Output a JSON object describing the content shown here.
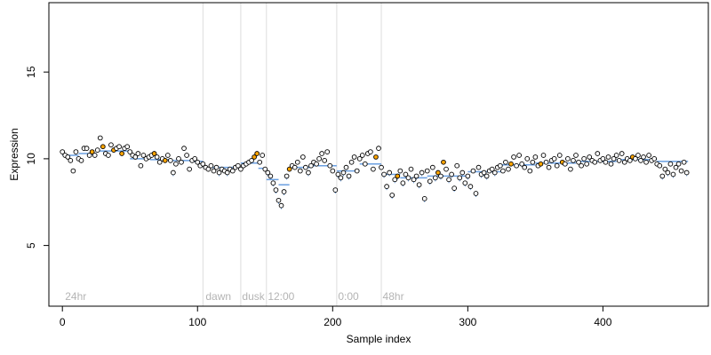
{
  "chart_data": {
    "type": "scatter",
    "title": "",
    "xlabel": "Sample index",
    "ylabel": "Expression",
    "xlim": [
      -10,
      478
    ],
    "ylim": [
      1.5,
      19
    ],
    "x_ticks": [
      0,
      100,
      200,
      300,
      400
    ],
    "y_ticks": [
      5,
      10,
      15
    ],
    "grid": false,
    "legend": "none",
    "colors": {
      "fill_default": "#ffffff",
      "fill_highlight": "#ffa500",
      "stroke": "#000000",
      "segment": "#6a9fe0",
      "vline": "#dddddd",
      "annotation": "#b4b4b4"
    },
    "annotations": [
      {
        "label": "24hr",
        "x": 2
      },
      {
        "label": "dawn",
        "x": 106
      },
      {
        "label": "dusk",
        "x": 133
      },
      {
        "label": "12:00",
        "x": 152
      },
      {
        "label": "0:00",
        "x": 204
      },
      {
        "label": "48hr",
        "x": 237
      }
    ],
    "vlines": [
      104,
      132,
      151,
      203,
      236
    ],
    "segments": [
      {
        "x": [
          0,
          12
        ],
        "y": 10.2
      },
      {
        "x": [
          12,
          25
        ],
        "y": 10.3
      },
      {
        "x": [
          25,
          50
        ],
        "y": 10.45
      },
      {
        "x": [
          50,
          65
        ],
        "y": 10.0
      },
      {
        "x": [
          65,
          80
        ],
        "y": 9.95
      },
      {
        "x": [
          80,
          95
        ],
        "y": 9.9
      },
      {
        "x": [
          95,
          104
        ],
        "y": 9.85
      },
      {
        "x": [
          104,
          132
        ],
        "y": 9.5
      },
      {
        "x": [
          132,
          145
        ],
        "y": 9.75
      },
      {
        "x": [
          145,
          150
        ],
        "y": 9.45
      },
      {
        "x": [
          151,
          160
        ],
        "y": 8.8
      },
      {
        "x": [
          160,
          168
        ],
        "y": 8.5
      },
      {
        "x": [
          168,
          185
        ],
        "y": 9.5
      },
      {
        "x": [
          185,
          203
        ],
        "y": 9.6
      },
      {
        "x": [
          203,
          220
        ],
        "y": 9.3
      },
      {
        "x": [
          220,
          236
        ],
        "y": 9.7
      },
      {
        "x": [
          236,
          250
        ],
        "y": 9.1
      },
      {
        "x": [
          250,
          270
        ],
        "y": 8.9
      },
      {
        "x": [
          270,
          300
        ],
        "y": 9.0
      },
      {
        "x": [
          300,
          325
        ],
        "y": 9.25
      },
      {
        "x": [
          325,
          350
        ],
        "y": 9.65
      },
      {
        "x": [
          350,
          380
        ],
        "y": 9.75
      },
      {
        "x": [
          380,
          410
        ],
        "y": 9.85
      },
      {
        "x": [
          410,
          440
        ],
        "y": 9.95
      },
      {
        "x": [
          440,
          463
        ],
        "y": 9.85
      }
    ],
    "points": [
      [
        0,
        10.4,
        0
      ],
      [
        2,
        10.2,
        0
      ],
      [
        4,
        10.1,
        0
      ],
      [
        6,
        9.9,
        0
      ],
      [
        8,
        9.3,
        0
      ],
      [
        10,
        10.4,
        0
      ],
      [
        12,
        10.0,
        0
      ],
      [
        14,
        9.9,
        0
      ],
      [
        16,
        10.6,
        0
      ],
      [
        18,
        10.6,
        0
      ],
      [
        20,
        10.2,
        0
      ],
      [
        22,
        10.4,
        1
      ],
      [
        24,
        10.2,
        0
      ],
      [
        26,
        10.5,
        0
      ],
      [
        28,
        11.2,
        0
      ],
      [
        30,
        10.7,
        1
      ],
      [
        32,
        10.3,
        0
      ],
      [
        34,
        10.2,
        0
      ],
      [
        36,
        10.8,
        0
      ],
      [
        38,
        10.5,
        1
      ],
      [
        40,
        10.6,
        0
      ],
      [
        42,
        10.7,
        0
      ],
      [
        44,
        10.3,
        1
      ],
      [
        46,
        10.6,
        0
      ],
      [
        48,
        10.7,
        0
      ],
      [
        50,
        10.4,
        0
      ],
      [
        52,
        10.2,
        0
      ],
      [
        54,
        10.1,
        0
      ],
      [
        56,
        10.3,
        0
      ],
      [
        58,
        9.6,
        0
      ],
      [
        60,
        10.2,
        0
      ],
      [
        62,
        10.0,
        0
      ],
      [
        64,
        10.1,
        0
      ],
      [
        66,
        10.2,
        0
      ],
      [
        68,
        10.3,
        1
      ],
      [
        70,
        10.1,
        0
      ],
      [
        72,
        9.8,
        0
      ],
      [
        74,
        10.0,
        0
      ],
      [
        76,
        9.9,
        1
      ],
      [
        78,
        10.2,
        0
      ],
      [
        80,
        9.9,
        0
      ],
      [
        82,
        9.2,
        0
      ],
      [
        84,
        9.7,
        0
      ],
      [
        86,
        10.0,
        0
      ],
      [
        88,
        9.8,
        0
      ],
      [
        90,
        10.6,
        0
      ],
      [
        92,
        10.2,
        0
      ],
      [
        94,
        9.4,
        0
      ],
      [
        96,
        9.9,
        0
      ],
      [
        98,
        10.0,
        0
      ],
      [
        100,
        9.8,
        0
      ],
      [
        102,
        9.6,
        0
      ],
      [
        104,
        9.7,
        0
      ],
      [
        106,
        9.5,
        0
      ],
      [
        108,
        9.4,
        0
      ],
      [
        110,
        9.6,
        0
      ],
      [
        112,
        9.3,
        0
      ],
      [
        114,
        9.5,
        0
      ],
      [
        116,
        9.2,
        0
      ],
      [
        118,
        9.4,
        0
      ],
      [
        120,
        9.3,
        0
      ],
      [
        122,
        9.2,
        0
      ],
      [
        124,
        9.4,
        0
      ],
      [
        126,
        9.3,
        0
      ],
      [
        128,
        9.5,
        0
      ],
      [
        130,
        9.6,
        0
      ],
      [
        132,
        9.4,
        0
      ],
      [
        134,
        9.6,
        0
      ],
      [
        136,
        9.7,
        0
      ],
      [
        138,
        9.8,
        0
      ],
      [
        140,
        9.9,
        0
      ],
      [
        142,
        10.1,
        1
      ],
      [
        144,
        10.3,
        1
      ],
      [
        146,
        9.8,
        0
      ],
      [
        148,
        10.2,
        0
      ],
      [
        150,
        9.4,
        0
      ],
      [
        152,
        9.2,
        0
      ],
      [
        154,
        9.0,
        0
      ],
      [
        156,
        8.6,
        0
      ],
      [
        158,
        8.2,
        0
      ],
      [
        160,
        7.6,
        0
      ],
      [
        162,
        7.3,
        0
      ],
      [
        164,
        8.1,
        0
      ],
      [
        166,
        9.0,
        0
      ],
      [
        168,
        9.4,
        1
      ],
      [
        170,
        9.6,
        0
      ],
      [
        172,
        9.5,
        0
      ],
      [
        174,
        9.8,
        0
      ],
      [
        176,
        9.3,
        0
      ],
      [
        178,
        10.1,
        0
      ],
      [
        180,
        9.5,
        0
      ],
      [
        182,
        9.2,
        0
      ],
      [
        184,
        9.6,
        0
      ],
      [
        186,
        9.8,
        0
      ],
      [
        188,
        9.7,
        0
      ],
      [
        190,
        10.0,
        0
      ],
      [
        192,
        10.3,
        0
      ],
      [
        194,
        9.9,
        0
      ],
      [
        196,
        10.4,
        0
      ],
      [
        198,
        9.6,
        0
      ],
      [
        200,
        9.3,
        0
      ],
      [
        202,
        8.2,
        0
      ],
      [
        204,
        9.1,
        0
      ],
      [
        206,
        8.9,
        0
      ],
      [
        208,
        9.2,
        0
      ],
      [
        210,
        9.5,
        0
      ],
      [
        212,
        9.0,
        0
      ],
      [
        214,
        9.8,
        0
      ],
      [
        216,
        10.1,
        0
      ],
      [
        218,
        9.3,
        0
      ],
      [
        220,
        10.0,
        0
      ],
      [
        222,
        10.2,
        0
      ],
      [
        224,
        9.7,
        0
      ],
      [
        226,
        10.3,
        0
      ],
      [
        228,
        10.4,
        0
      ],
      [
        230,
        9.4,
        0
      ],
      [
        232,
        10.1,
        1
      ],
      [
        234,
        10.6,
        0
      ],
      [
        236,
        9.5,
        0
      ],
      [
        238,
        9.1,
        0
      ],
      [
        240,
        8.4,
        0
      ],
      [
        242,
        9.2,
        0
      ],
      [
        244,
        7.9,
        0
      ],
      [
        246,
        8.8,
        0
      ],
      [
        248,
        9.0,
        1
      ],
      [
        250,
        9.3,
        0
      ],
      [
        252,
        8.6,
        0
      ],
      [
        254,
        9.1,
        0
      ],
      [
        256,
        8.9,
        0
      ],
      [
        258,
        9.4,
        0
      ],
      [
        260,
        8.8,
        0
      ],
      [
        262,
        9.0,
        0
      ],
      [
        264,
        8.5,
        0
      ],
      [
        266,
        9.2,
        0
      ],
      [
        268,
        7.7,
        0
      ],
      [
        270,
        9.3,
        0
      ],
      [
        272,
        8.7,
        0
      ],
      [
        274,
        9.5,
        0
      ],
      [
        276,
        8.9,
        0
      ],
      [
        278,
        9.2,
        1
      ],
      [
        280,
        9.0,
        0
      ],
      [
        282,
        9.8,
        1
      ],
      [
        284,
        9.4,
        0
      ],
      [
        286,
        8.8,
        0
      ],
      [
        288,
        9.1,
        0
      ],
      [
        290,
        8.3,
        0
      ],
      [
        292,
        9.6,
        0
      ],
      [
        294,
        8.9,
        0
      ],
      [
        296,
        9.2,
        0
      ],
      [
        298,
        8.6,
        0
      ],
      [
        300,
        9.0,
        0
      ],
      [
        302,
        8.4,
        0
      ],
      [
        304,
        9.3,
        0
      ],
      [
        306,
        8.0,
        0
      ],
      [
        308,
        9.5,
        0
      ],
      [
        310,
        9.1,
        0
      ],
      [
        312,
        9.2,
        0
      ],
      [
        314,
        9.0,
        0
      ],
      [
        316,
        9.3,
        0
      ],
      [
        318,
        9.4,
        0
      ],
      [
        320,
        9.2,
        0
      ],
      [
        322,
        9.5,
        0
      ],
      [
        324,
        9.6,
        0
      ],
      [
        326,
        9.3,
        0
      ],
      [
        328,
        9.8,
        0
      ],
      [
        330,
        9.4,
        0
      ],
      [
        332,
        9.7,
        1
      ],
      [
        334,
        10.1,
        0
      ],
      [
        336,
        9.6,
        0
      ],
      [
        338,
        10.2,
        0
      ],
      [
        340,
        9.7,
        0
      ],
      [
        342,
        9.5,
        0
      ],
      [
        344,
        10.0,
        0
      ],
      [
        346,
        9.3,
        0
      ],
      [
        348,
        9.8,
        0
      ],
      [
        350,
        10.1,
        0
      ],
      [
        352,
        9.6,
        0
      ],
      [
        354,
        9.7,
        1
      ],
      [
        356,
        10.2,
        0
      ],
      [
        358,
        9.8,
        0
      ],
      [
        360,
        9.5,
        0
      ],
      [
        362,
        9.9,
        0
      ],
      [
        364,
        10.0,
        0
      ],
      [
        366,
        9.6,
        0
      ],
      [
        368,
        10.2,
        0
      ],
      [
        370,
        9.8,
        1
      ],
      [
        372,
        9.7,
        0
      ],
      [
        374,
        10.0,
        0
      ],
      [
        376,
        9.4,
        0
      ],
      [
        378,
        9.9,
        0
      ],
      [
        380,
        10.2,
        0
      ],
      [
        382,
        9.8,
        0
      ],
      [
        384,
        9.6,
        0
      ],
      [
        386,
        10.0,
        0
      ],
      [
        388,
        9.7,
        0
      ],
      [
        390,
        10.1,
        0
      ],
      [
        392,
        9.9,
        0
      ],
      [
        394,
        9.8,
        0
      ],
      [
        396,
        10.3,
        0
      ],
      [
        398,
        9.9,
        0
      ],
      [
        400,
        10.0,
        0
      ],
      [
        402,
        9.8,
        0
      ],
      [
        404,
        10.1,
        0
      ],
      [
        406,
        9.7,
        0
      ],
      [
        408,
        10.0,
        0
      ],
      [
        410,
        10.2,
        0
      ],
      [
        412,
        9.9,
        0
      ],
      [
        414,
        10.3,
        0
      ],
      [
        416,
        9.8,
        0
      ],
      [
        418,
        10.0,
        0
      ],
      [
        420,
        9.9,
        0
      ],
      [
        422,
        10.1,
        1
      ],
      [
        424,
        10.0,
        0
      ],
      [
        426,
        10.2,
        0
      ],
      [
        428,
        9.9,
        0
      ],
      [
        430,
        10.1,
        0
      ],
      [
        432,
        9.8,
        0
      ],
      [
        434,
        10.2,
        0
      ],
      [
        436,
        9.9,
        0
      ],
      [
        438,
        10.0,
        0
      ],
      [
        440,
        9.7,
        0
      ],
      [
        442,
        9.6,
        0
      ],
      [
        444,
        9.0,
        0
      ],
      [
        446,
        9.4,
        0
      ],
      [
        448,
        9.2,
        0
      ],
      [
        450,
        9.7,
        0
      ],
      [
        452,
        9.1,
        0
      ],
      [
        454,
        9.5,
        0
      ],
      [
        456,
        9.7,
        0
      ],
      [
        458,
        9.3,
        0
      ],
      [
        460,
        9.8,
        0
      ],
      [
        462,
        9.2,
        0
      ]
    ]
  }
}
